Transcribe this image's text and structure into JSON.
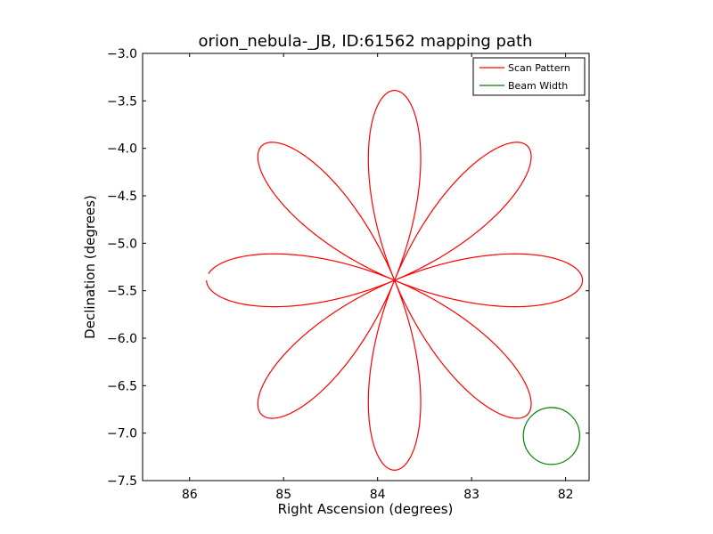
{
  "chart_data": {
    "type": "line",
    "title": "orion_nebula-_JB, ID:61562 mapping path",
    "xlabel": "Right Ascension (degrees)",
    "ylabel": "Declination (degrees)",
    "xlim": [
      86.5,
      81.75
    ],
    "ylim": [
      -7.5,
      -3.0
    ],
    "x_inverted": true,
    "xticks": [
      86,
      85,
      84,
      83,
      82
    ],
    "xtick_labels": [
      "86",
      "85",
      "84",
      "83",
      "82"
    ],
    "yticks": [
      -3.0,
      -3.5,
      -4.0,
      -4.5,
      -5.0,
      -5.5,
      -6.0,
      -6.5,
      -7.0,
      -7.5
    ],
    "ytick_labels": [
      "−3.0",
      "−3.5",
      "−4.0",
      "−4.5",
      "−5.0",
      "−5.5",
      "−6.0",
      "−6.5",
      "−7.0",
      "−7.5"
    ],
    "grid": false,
    "legend_position": "top-right",
    "series": [
      {
        "name": "Scan Pattern",
        "color": "#ff0000",
        "kind": "rose",
        "center": [
          83.82,
          -5.39
        ],
        "petals": 8,
        "radius_deg": 2.0,
        "start_angle_deg": 180,
        "sweep_deg": 358
      },
      {
        "name": "Beam Width",
        "color": "#008000",
        "kind": "circle",
        "center": [
          82.15,
          -7.03
        ],
        "radius_deg": 0.3
      }
    ]
  }
}
